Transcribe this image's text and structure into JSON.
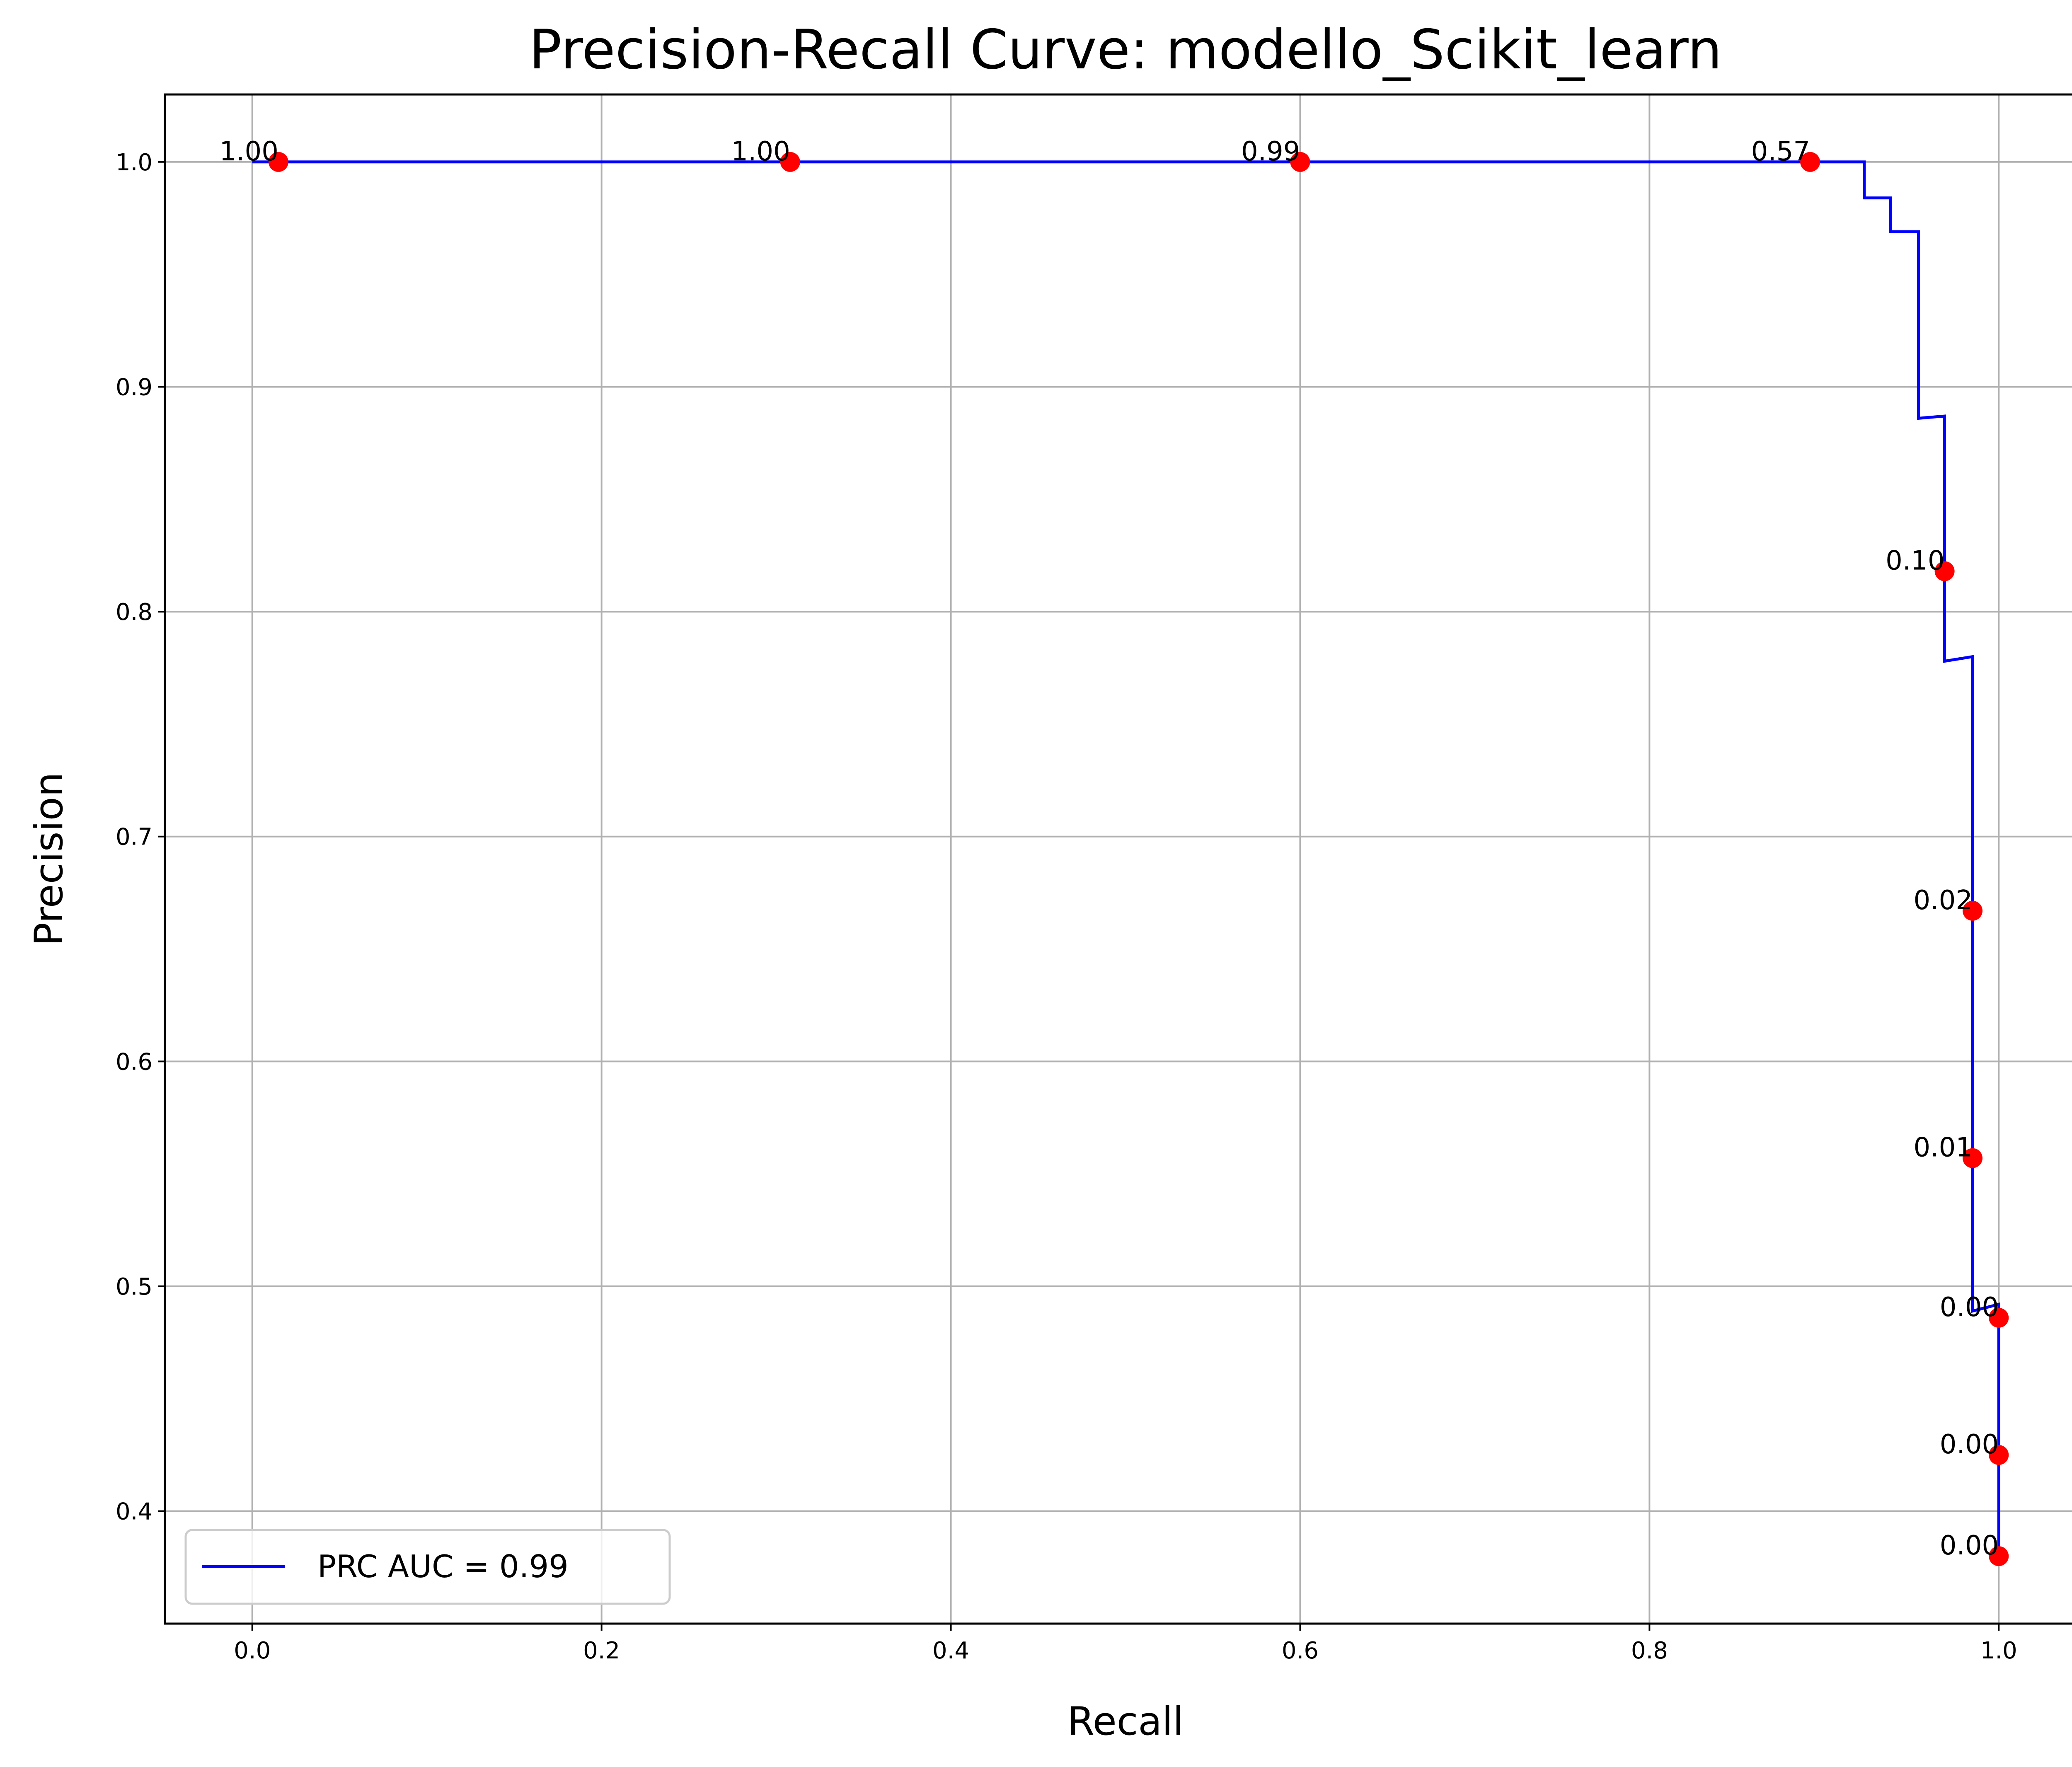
{
  "chart_data": {
    "type": "line",
    "title": "Precision-Recall Curve: modello_Scikit_learn",
    "xlabel": "Recall",
    "ylabel": "Precision",
    "xlim": [
      -0.05,
      1.05
    ],
    "ylim": [
      0.35,
      1.03
    ],
    "xticks": [
      0.0,
      0.2,
      0.4,
      0.6,
      0.8,
      1.0
    ],
    "xtick_labels": [
      "0.0",
      "0.2",
      "0.4",
      "0.6",
      "0.8",
      "1.0"
    ],
    "yticks": [
      0.4,
      0.5,
      0.6,
      0.7,
      0.8,
      0.9,
      1.0
    ],
    "ytick_labels": [
      "0.4",
      "0.5",
      "0.6",
      "0.7",
      "0.8",
      "0.9",
      "1.0"
    ],
    "grid": true,
    "legend_position": "lower-left",
    "series": [
      {
        "name": "PRC AUC = 0.99",
        "color": "#0000ff",
        "x": [
          0.0,
          0.923,
          0.923,
          0.938,
          0.938,
          0.954,
          0.954,
          0.969,
          0.969,
          0.969,
          0.985,
          0.985,
          0.985,
          1.0,
          1.0,
          1.0
        ],
        "y": [
          1.0,
          1.0,
          0.984,
          0.984,
          0.969,
          0.969,
          0.886,
          0.887,
          0.818,
          0.778,
          0.78,
          0.667,
          0.489,
          0.492,
          0.425,
          0.38
        ]
      }
    ],
    "points": [
      {
        "x": 0.015,
        "y": 1.0,
        "label": "1.00"
      },
      {
        "x": 0.308,
        "y": 1.0,
        "label": "1.00"
      },
      {
        "x": 0.6,
        "y": 1.0,
        "label": "0.99"
      },
      {
        "x": 0.892,
        "y": 1.0,
        "label": "0.57"
      },
      {
        "x": 0.969,
        "y": 0.818,
        "label": "0.10"
      },
      {
        "x": 0.985,
        "y": 0.667,
        "label": "0.02"
      },
      {
        "x": 0.985,
        "y": 0.557,
        "label": "0.01"
      },
      {
        "x": 1.0,
        "y": 0.486,
        "label": "0.00"
      },
      {
        "x": 1.0,
        "y": 0.425,
        "label": "0.00"
      },
      {
        "x": 1.0,
        "y": 0.38,
        "label": "0.00"
      }
    ],
    "points_color": "#ff0000"
  }
}
